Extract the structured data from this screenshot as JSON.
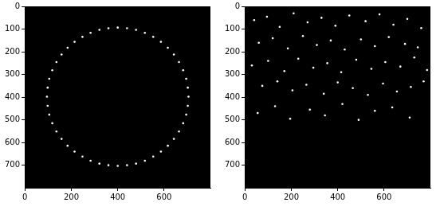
{
  "chart_data": [
    {
      "type": "scatter",
      "color": "#ffffff",
      "grid": false,
      "xlim": [
        -0.5,
        799.5
      ],
      "ylim": [
        799.5,
        -0.5
      ],
      "xticks": [
        0,
        200,
        400,
        600
      ],
      "yticks": [
        0,
        100,
        200,
        300,
        400,
        500,
        600,
        700
      ],
      "x": [
        705,
        702,
        695,
        682,
        664,
        642,
        616,
        586,
        553,
        517,
        479,
        440,
        400,
        360,
        321,
        283,
        248,
        214,
        184,
        158,
        136,
        118,
        105,
        98,
        95,
        98,
        105,
        118,
        136,
        158,
        184,
        214,
        248,
        283,
        321,
        360,
        400,
        440,
        479,
        517,
        553,
        586,
        616,
        642,
        664,
        682,
        695,
        702
      ],
      "y": [
        398,
        438,
        477,
        515,
        551,
        584,
        614,
        640,
        662,
        680,
        693,
        700,
        703,
        700,
        693,
        680,
        662,
        640,
        614,
        584,
        551,
        515,
        477,
        438,
        398,
        358,
        319,
        281,
        245,
        212,
        182,
        156,
        134,
        116,
        103,
        96,
        93,
        96,
        103,
        116,
        134,
        156,
        182,
        212,
        245,
        281,
        319,
        358
      ]
    },
    {
      "type": "scatter",
      "color": "#ffffff",
      "grid": false,
      "xlim": [
        -0.5,
        799.5
      ],
      "ylim": [
        799.5,
        -0.5
      ],
      "xticks": [
        0,
        200,
        400,
        600
      ],
      "yticks": [
        0,
        100,
        200,
        300,
        400,
        500,
        600,
        700
      ],
      "x": [
        40,
        95,
        150,
        210,
        270,
        330,
        390,
        450,
        520,
        580,
        640,
        700,
        760,
        60,
        120,
        185,
        250,
        310,
        370,
        430,
        500,
        560,
        620,
        690,
        745,
        30,
        100,
        170,
        230,
        295,
        355,
        415,
        480,
        545,
        605,
        670,
        730,
        785,
        75,
        140,
        205,
        265,
        340,
        400,
        465,
        530,
        595,
        655,
        715,
        770,
        55,
        130,
        195,
        280,
        345,
        420,
        490,
        560,
        635,
        710
      ],
      "y": [
        60,
        45,
        90,
        30,
        70,
        50,
        85,
        40,
        65,
        35,
        80,
        55,
        95,
        160,
        140,
        185,
        130,
        170,
        150,
        190,
        145,
        175,
        135,
        165,
        180,
        260,
        240,
        285,
        230,
        270,
        250,
        290,
        235,
        275,
        245,
        265,
        225,
        280,
        350,
        330,
        370,
        345,
        385,
        335,
        360,
        390,
        340,
        375,
        355,
        330,
        470,
        440,
        495,
        455,
        480,
        430,
        500,
        460,
        445,
        490
      ]
    }
  ]
}
